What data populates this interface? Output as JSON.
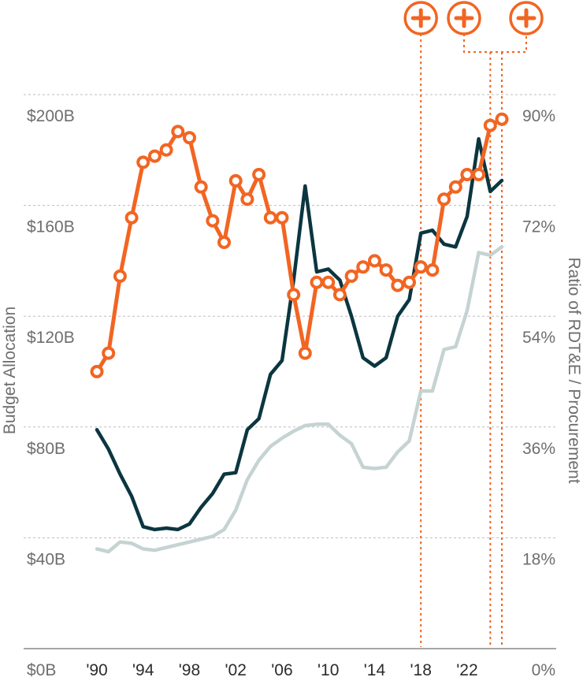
{
  "colors": {
    "rdte": "#0b3640",
    "procurement": "#c5d3d2",
    "ratio": "#f26522",
    "marker_fill": "#ffffff"
  },
  "annotations": {
    "icon": "plus-circle-icon",
    "years": [
      2018,
      2024,
      2025
    ]
  },
  "chart_data": {
    "type": "line",
    "ylabel": "Budget Allocation",
    "y2label": "Ratio of RDT&E / Procurement",
    "xlim": [
      1990,
      2025
    ],
    "ylim": [
      0,
      200
    ],
    "y2lim": [
      0,
      90
    ],
    "x_ticks": [
      "'90",
      "'94",
      "'98",
      "'02",
      "'06",
      "'10",
      "'14",
      "'18",
      "'22"
    ],
    "x_tick_values": [
      1990,
      1994,
      1998,
      2002,
      2006,
      2010,
      2014,
      2018,
      2022
    ],
    "y_ticks": [
      "$0B",
      "$40B",
      "$80B",
      "$120B",
      "$160B",
      "$200B"
    ],
    "y_tick_values": [
      0,
      40,
      80,
      120,
      160,
      200
    ],
    "y2_ticks": [
      "0%",
      "18%",
      "36%",
      "54%",
      "72%",
      "90%"
    ],
    "y2_tick_values": [
      0,
      18,
      36,
      54,
      72,
      90
    ],
    "x": [
      1990,
      1991,
      1992,
      1993,
      1994,
      1995,
      1996,
      1997,
      1998,
      1999,
      2000,
      2001,
      2002,
      2003,
      2004,
      2005,
      2006,
      2007,
      2008,
      2009,
      2010,
      2011,
      2012,
      2013,
      2014,
      2015,
      2016,
      2017,
      2018,
      2019,
      2020,
      2021,
      2022,
      2023,
      2024,
      2025
    ],
    "series": [
      {
        "axis": "left",
        "values": [
          79,
          72,
          63,
          55,
          44,
          43,
          43.5,
          43,
          45,
          51,
          56,
          63,
          63.5,
          79,
          83,
          99,
          104,
          133,
          167,
          136,
          137,
          133,
          120,
          105,
          102,
          105,
          120,
          126,
          150,
          151,
          146,
          145,
          156,
          184,
          165,
          169
        ]
      },
      {
        "axis": "left",
        "values": [
          36,
          35,
          38.5,
          38,
          36,
          35.5,
          36.5,
          37.5,
          38.5,
          39.5,
          40.5,
          43,
          50,
          61,
          68,
          73,
          76,
          78.5,
          80.5,
          81,
          81,
          77,
          74,
          65.5,
          65,
          65.5,
          71,
          75,
          93,
          93,
          108,
          109,
          122,
          143,
          142,
          145
        ]
      },
      {
        "axis": "right",
        "values": [
          45,
          48,
          60.5,
          70,
          79,
          80,
          81,
          84,
          83,
          75,
          69.5,
          66,
          76,
          73,
          77,
          70,
          70,
          57.5,
          48,
          59.5,
          59.5,
          57.5,
          60.5,
          62,
          63,
          61.5,
          59,
          59.5,
          62,
          61.5,
          73,
          75,
          77,
          77,
          85,
          86
        ]
      }
    ]
  }
}
